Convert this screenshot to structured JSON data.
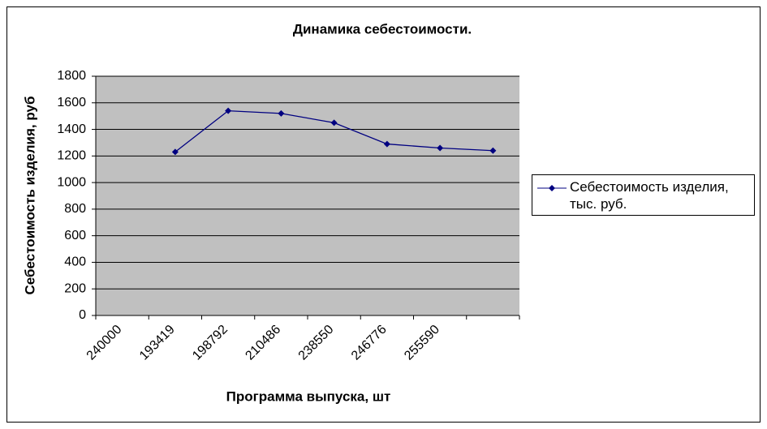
{
  "chart_data": {
    "type": "line",
    "title": "Динамика себестоимости.",
    "xlabel": "Программа выпуска, шт",
    "ylabel": "Себестоимость изделия, руб",
    "categories": [
      "240000",
      "193419",
      "198792",
      "210486",
      "238550",
      "246776",
      "255590",
      null
    ],
    "series": [
      {
        "name": "Себестоимость изделия, тыс. руб.",
        "color": "#000080",
        "values": [
          null,
          1230,
          1540,
          1520,
          1450,
          1290,
          1260,
          1240
        ]
      }
    ],
    "ylim": [
      0,
      1800
    ],
    "yticks": [
      0,
      200,
      400,
      600,
      800,
      1000,
      1200,
      1400,
      1600,
      1800
    ],
    "grid": true,
    "legend": "right"
  }
}
